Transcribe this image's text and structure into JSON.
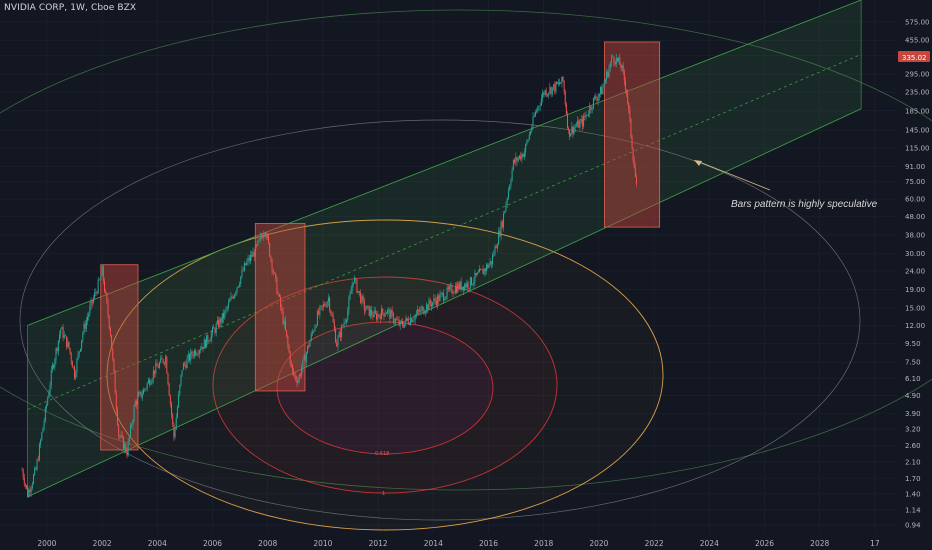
{
  "header": {
    "symbol_label": "NVIDIA CORP, 1W, Cboe BZX"
  },
  "annotation": {
    "text": "Bars pattern is highly speculative"
  },
  "fib_labels": [
    "0.618",
    "1"
  ],
  "price_badge": "335.02",
  "colors": {
    "background": "#131722",
    "channel": "#2e7d32",
    "highlight_box": "#c8463c",
    "ellipse_outer": "#ffb74d",
    "ellipse_mid": "#e53935",
    "bull": "#26a69a",
    "bear": "#ef5350"
  },
  "chart_data": {
    "type": "candlestick",
    "title": "NVIDIA CORP, 1W, Cboe BZX",
    "scale": "log",
    "ylim": [
      0.85,
      760
    ],
    "xlim": [
      1998.3,
      2030.8
    ],
    "y_tick_labels": [
      "575.00",
      "455.00",
      "375.00",
      "295.00",
      "235.00",
      "185.00",
      "145.00",
      "115.00",
      "91.00",
      "75.00",
      "60.00",
      "48.00",
      "38.00",
      "30.00",
      "24.00",
      "19.00",
      "15.00",
      "12.00",
      "9.50",
      "7.50",
      "6.10",
      "4.90",
      "3.90",
      "3.20",
      "2.60",
      "2.10",
      "1.70",
      "1.40",
      "1.14",
      "0.94"
    ],
    "x_tick_labels": [
      "2000",
      "2002",
      "2004",
      "2006",
      "2008",
      "2010",
      "2012",
      "2014",
      "2016",
      "2018",
      "2020",
      "2022",
      "2024",
      "2026",
      "2028",
      "17"
    ],
    "grid": true,
    "price_path": [
      [
        1999.1,
        1.9
      ],
      [
        1999.3,
        1.4
      ],
      [
        1999.6,
        1.9
      ],
      [
        1999.9,
        3.6
      ],
      [
        2000.2,
        7.0
      ],
      [
        2000.5,
        11.5
      ],
      [
        2000.8,
        9.0
      ],
      [
        2001.0,
        6.5
      ],
      [
        2001.3,
        11.0
      ],
      [
        2001.6,
        15.5
      ],
      [
        2001.9,
        21.0
      ],
      [
        2002.0,
        24.0
      ],
      [
        2002.3,
        11.0
      ],
      [
        2002.6,
        3.0
      ],
      [
        2002.9,
        2.4
      ],
      [
        2003.2,
        4.5
      ],
      [
        2003.5,
        5.2
      ],
      [
        2003.9,
        6.8
      ],
      [
        2004.3,
        8.0
      ],
      [
        2004.6,
        2.9
      ],
      [
        2004.9,
        7.0
      ],
      [
        2005.3,
        8.5
      ],
      [
        2005.7,
        9.5
      ],
      [
        2006.0,
        11.0
      ],
      [
        2006.4,
        13.5
      ],
      [
        2006.8,
        18.5
      ],
      [
        2007.2,
        26.0
      ],
      [
        2007.6,
        32.0
      ],
      [
        2007.9,
        42.0
      ],
      [
        2008.2,
        24.0
      ],
      [
        2008.6,
        12.0
      ],
      [
        2008.9,
        6.5
      ],
      [
        2009.1,
        6.0
      ],
      [
        2009.4,
        8.5
      ],
      [
        2009.8,
        13.5
      ],
      [
        2010.2,
        17.0
      ],
      [
        2010.5,
        9.5
      ],
      [
        2010.9,
        14.5
      ],
      [
        2011.1,
        22.0
      ],
      [
        2011.5,
        15.0
      ],
      [
        2011.9,
        13.5
      ],
      [
        2012.3,
        14.5
      ],
      [
        2012.8,
        12.0
      ],
      [
        2013.3,
        13.5
      ],
      [
        2013.8,
        15.5
      ],
      [
        2014.2,
        17.0
      ],
      [
        2014.8,
        19.5
      ],
      [
        2015.3,
        20.5
      ],
      [
        2015.8,
        24.0
      ],
      [
        2016.1,
        27.0
      ],
      [
        2016.5,
        45.0
      ],
      [
        2016.9,
        95.0
      ],
      [
        2017.3,
        110.0
      ],
      [
        2017.7,
        180.0
      ],
      [
        2018.0,
        235.0
      ],
      [
        2018.4,
        250.0
      ],
      [
        2018.7,
        270.0
      ],
      [
        2018.9,
        140.0
      ],
      [
        2019.1,
        150.0
      ],
      [
        2019.4,
        160.0
      ],
      [
        2019.8,
        210.0
      ],
      [
        2020.1,
        240.0
      ],
      [
        2020.5,
        370.0
      ],
      [
        2020.8,
        330.0
      ],
      [
        2021.0,
        240.0
      ],
      [
        2021.2,
        120.0
      ],
      [
        2021.4,
        60.0
      ]
    ],
    "series": [
      {
        "name": "",
        "kind": "channel_upper",
        "points": [
          [
            1999.3,
            12.0
          ],
          [
            2029.5,
            760.0
          ]
        ]
      },
      {
        "name": "",
        "kind": "channel_lower",
        "points": [
          [
            1999.3,
            1.35
          ],
          [
            2029.5,
            190.0
          ]
        ]
      },
      {
        "name": "",
        "kind": "channel_mid",
        "points": [
          [
            1999.3,
            4.1
          ],
          [
            2029.5,
            380.0
          ]
        ]
      }
    ],
    "highlight_boxes": [
      {
        "x": [
          2001.95,
          2003.3
        ],
        "y": [
          2.45,
          26.0
        ]
      },
      {
        "x": [
          2007.55,
          2009.35
        ],
        "y": [
          5.2,
          44.0
        ]
      },
      {
        "x": [
          2020.2,
          2022.2
        ],
        "y": [
          42.0,
          445.0
        ]
      }
    ]
  }
}
